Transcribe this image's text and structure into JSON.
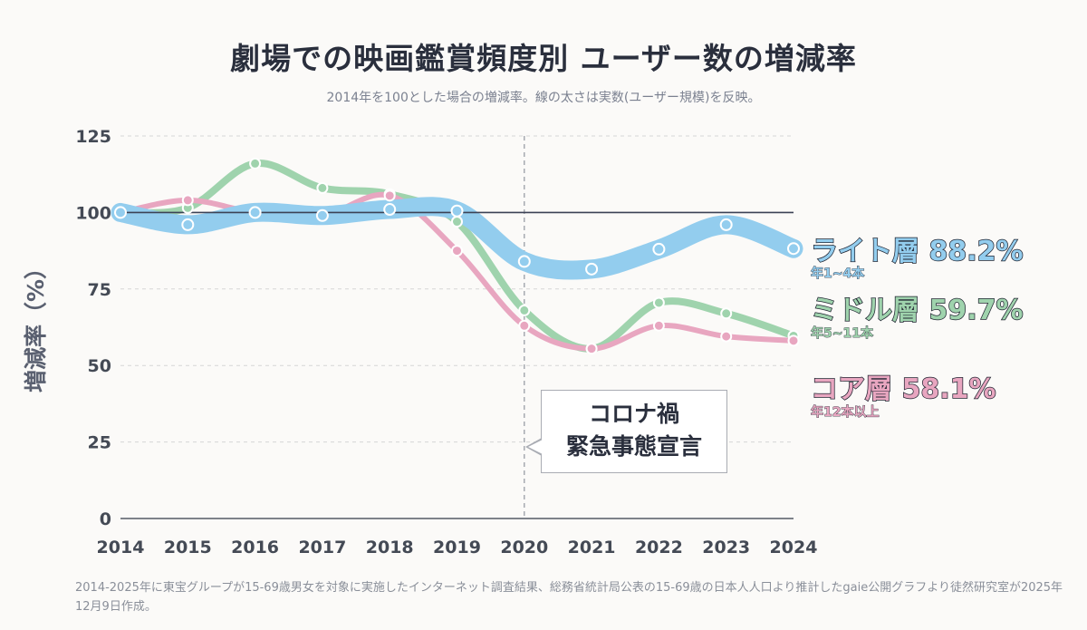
{
  "title": "劇場での映画鑑賞頻度別 ユーザー数の増減率",
  "subtitle": "2014年を100とした場合の増減率。線の太さは実数(ユーザー規模)を反映。",
  "footnote": "2014-2025年に東宝グループが15-69歳男女を対象に実施したインターネット調査結果、総務省統計局公表の15-69歳の日本人人口より推計したgaie公開グラフより徒然研究室が2025年12月9日作成。",
  "annotation": {
    "line1": "コロナ禍",
    "line2": "緊急事態宣言",
    "x": 2020
  },
  "colors": {
    "light": "#93cdee",
    "middle": "#9fd3ad",
    "core": "#e8a6c0",
    "reference": "#3c4255",
    "grid": "#d6d6d6"
  },
  "chart_data": {
    "type": "line",
    "x": [
      2014,
      2015,
      2016,
      2017,
      2018,
      2019,
      2020,
      2021,
      2022,
      2023,
      2024
    ],
    "ylabel": "増減率（%）",
    "xlabel": "",
    "ylim": [
      0,
      125
    ],
    "yticks": [
      0,
      25,
      50,
      75,
      100,
      125
    ],
    "reference_line": 100,
    "grid": true,
    "series": [
      {
        "key": "light",
        "name": "ライト層",
        "sub": "年1~4本",
        "final_label": "88.2%",
        "values": [
          100,
          96,
          100,
          99,
          101,
          100.5,
          84,
          81.5,
          88,
          96,
          88.2
        ]
      },
      {
        "key": "middle",
        "name": "ミドル層",
        "sub": "年5~11本",
        "final_label": "59.7%",
        "values": [
          100,
          101.5,
          116,
          108,
          106,
          97,
          68,
          55.5,
          70.5,
          67,
          59.7
        ]
      },
      {
        "key": "core",
        "name": "コア層",
        "sub": "年12本以上",
        "final_label": "58.1%",
        "values": [
          100,
          104,
          100,
          99,
          105.5,
          87.5,
          63,
          55.5,
          63,
          59.5,
          58.1
        ]
      }
    ]
  }
}
